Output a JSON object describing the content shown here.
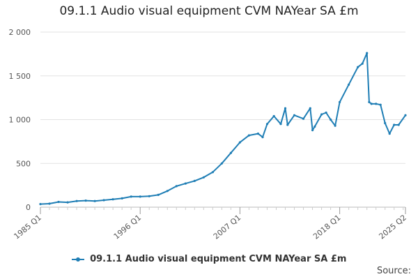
{
  "title": "09.1.1 Audio visual equipment CVM NAYear SA £m",
  "legend_label": "09.1.1 Audio visual equipment CVM NAYear SA £m",
  "source_label": "Source:",
  "colors": {
    "series": "#1f7eb5",
    "grid": "#e2e2e2",
    "axis": "#bbbbbb"
  },
  "chart_data": {
    "type": "line",
    "title": "09.1.1 Audio visual equipment CVM NAYear SA £m",
    "xlabel": "",
    "ylabel": "",
    "x_labels": [
      "1985 Q1",
      "1996 Q1",
      "2007 Q1",
      "2018 Q1",
      "2025 Q2"
    ],
    "y_ticks": [
      "0",
      "500",
      "1 000",
      "1 500",
      "2 000"
    ],
    "ylim": [
      0,
      2000
    ],
    "grid": true,
    "legend": "bottom",
    "series": [
      {
        "name": "09.1.1 Audio visual equipment CVM NAYear SA £m",
        "x": [
          "1985 Q1",
          "1986 Q1",
          "1987 Q1",
          "1988 Q1",
          "1989 Q1",
          "1990 Q1",
          "1991 Q1",
          "1992 Q1",
          "1993 Q1",
          "1994 Q1",
          "1995 Q1",
          "1996 Q1",
          "1997 Q1",
          "1998 Q1",
          "1999 Q1",
          "2000 Q1",
          "2001 Q1",
          "2002 Q1",
          "2003 Q1",
          "2004 Q1",
          "2005 Q1",
          "2006 Q1",
          "2007 Q1",
          "2008 Q1",
          "2009 Q1",
          "2009 Q3",
          "2010 Q1",
          "2010 Q4",
          "2011 Q3",
          "2012 Q1",
          "2012 Q2",
          "2013 Q1",
          "2014 Q1",
          "2014 Q4",
          "2015 Q1",
          "2015 Q2",
          "2016 Q1",
          "2016 Q3",
          "2017 Q1",
          "2017 Q3",
          "2018 Q1",
          "2019 Q1",
          "2020 Q1",
          "2020 Q3",
          "2021 Q1",
          "2021 Q2",
          "2021 Q3",
          "2022 Q1",
          "2022 Q3",
          "2023 Q1",
          "2023 Q3",
          "2024 Q1",
          "2024 Q3",
          "2025 Q2"
        ],
        "values": [
          35,
          40,
          60,
          55,
          70,
          75,
          70,
          80,
          90,
          100,
          120,
          120,
          125,
          140,
          185,
          240,
          270,
          300,
          340,
          400,
          500,
          620,
          740,
          820,
          840,
          800,
          950,
          1040,
          950,
          1130,
          940,
          1050,
          1010,
          1130,
          880,
          920,
          1060,
          1080,
          1000,
          930,
          1200,
          1400,
          1600,
          1640,
          1760,
          1200,
          1180,
          1180,
          1170,
          960,
          840,
          940,
          940,
          1050
        ]
      }
    ]
  }
}
